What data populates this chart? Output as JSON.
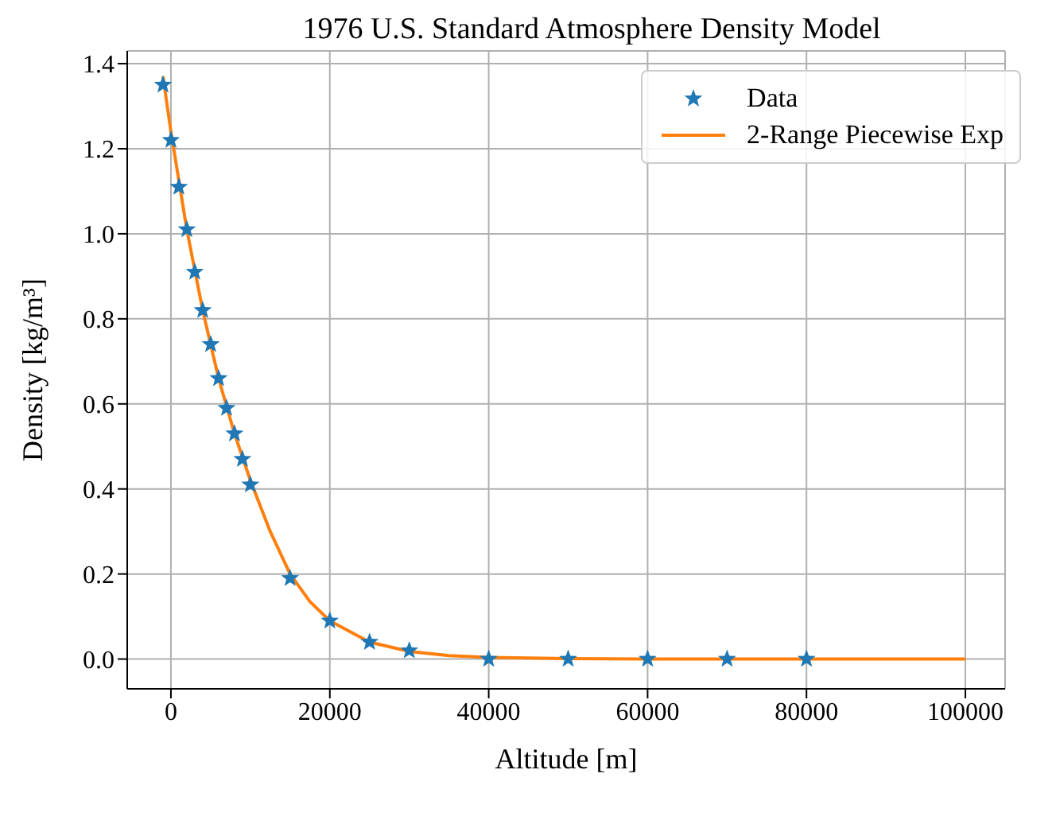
{
  "chart_data": {
    "type": "line",
    "title": "1976 U.S. Standard Atmosphere Density Model",
    "xlabel": "Altitude [m]",
    "ylabel": "Density [kg/m³]",
    "xlim": [
      -5500,
      105000
    ],
    "ylim": [
      -0.07,
      1.43
    ],
    "xticks": [
      0,
      20000,
      40000,
      60000,
      80000,
      100000
    ],
    "yticks": [
      {
        "value": 0,
        "label": "0.0"
      },
      {
        "value": 0.2,
        "label": "0.2"
      },
      {
        "value": 0.4,
        "label": "0.4"
      },
      {
        "value": 0.6,
        "label": "0.6"
      },
      {
        "value": 0.8,
        "label": "0.8"
      },
      {
        "value": 1,
        "label": "1.0"
      },
      {
        "value": 1.2,
        "label": "1.2"
      },
      {
        "value": 1.4,
        "label": "1.4"
      }
    ],
    "grid": true,
    "legend": "top right",
    "series": [
      {
        "name": "Data",
        "type": "scatter",
        "marker": "star",
        "color": "#1f77b4",
        "x": [
          -1000,
          0,
          1000,
          2000,
          3000,
          4000,
          5000,
          6000,
          7000,
          8000,
          9000,
          10000,
          15000,
          20000,
          25000,
          30000,
          40000,
          50000,
          60000,
          70000,
          80000
        ],
        "values": [
          1.35,
          1.22,
          1.11,
          1.01,
          0.91,
          0.82,
          0.74,
          0.66,
          0.59,
          0.53,
          0.47,
          0.41,
          0.19,
          0.09,
          0.04,
          0.02,
          0,
          0,
          0,
          0,
          0
        ]
      },
      {
        "name": "2-Range Piecewise Exp",
        "marker": "none",
        "color": "#ff7f0e",
        "x": [
          -1000,
          0,
          2000,
          4000,
          6000,
          8000,
          10000,
          12500,
          15000,
          17500,
          20000,
          25000,
          30000,
          35000,
          40000,
          50000,
          60000,
          80000,
          100000
        ],
        "values": [
          1.37,
          1.24,
          1.01,
          0.82,
          0.66,
          0.53,
          0.42,
          0.3,
          0.2,
          0.135,
          0.09,
          0.04,
          0.018,
          0.008,
          0.004,
          0.001,
          0,
          0,
          0
        ]
      }
    ]
  }
}
